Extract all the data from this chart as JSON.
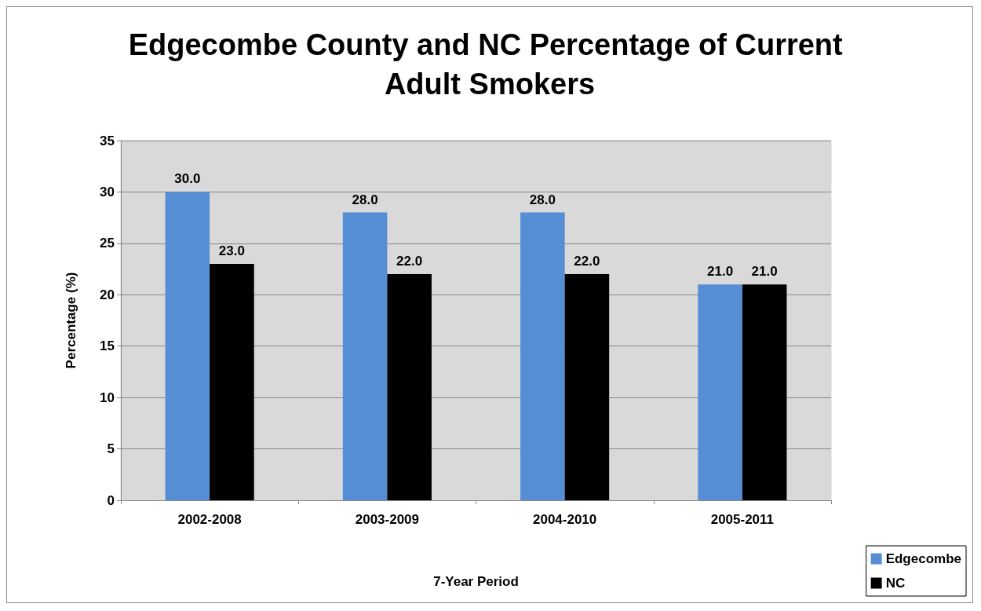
{
  "chart_data": {
    "type": "bar",
    "title": "Edgecombe County and NC Percentage of Current Adult Smokers",
    "xlabel": "7-Year Period",
    "ylabel": "Percentage (%)",
    "categories": [
      "2002-2008",
      "2003-2009",
      "2004-2010",
      "2005-2011"
    ],
    "series": [
      {
        "name": "Edgecombe",
        "color": "#558ed5",
        "values": [
          30,
          28,
          28,
          21
        ],
        "value_labels": [
          "30.0",
          "28.0",
          "28.0",
          "21.0"
        ]
      },
      {
        "name": "NC",
        "color": "#000000",
        "values": [
          23,
          22,
          22,
          21
        ],
        "value_labels": [
          "23.0",
          "22.0",
          "22.0",
          "21.0"
        ]
      }
    ],
    "ylim": [
      0,
      35
    ],
    "yticks": [
      0,
      5,
      10,
      15,
      20,
      25,
      30,
      35
    ],
    "grid": "y",
    "legend": "bottom right"
  }
}
